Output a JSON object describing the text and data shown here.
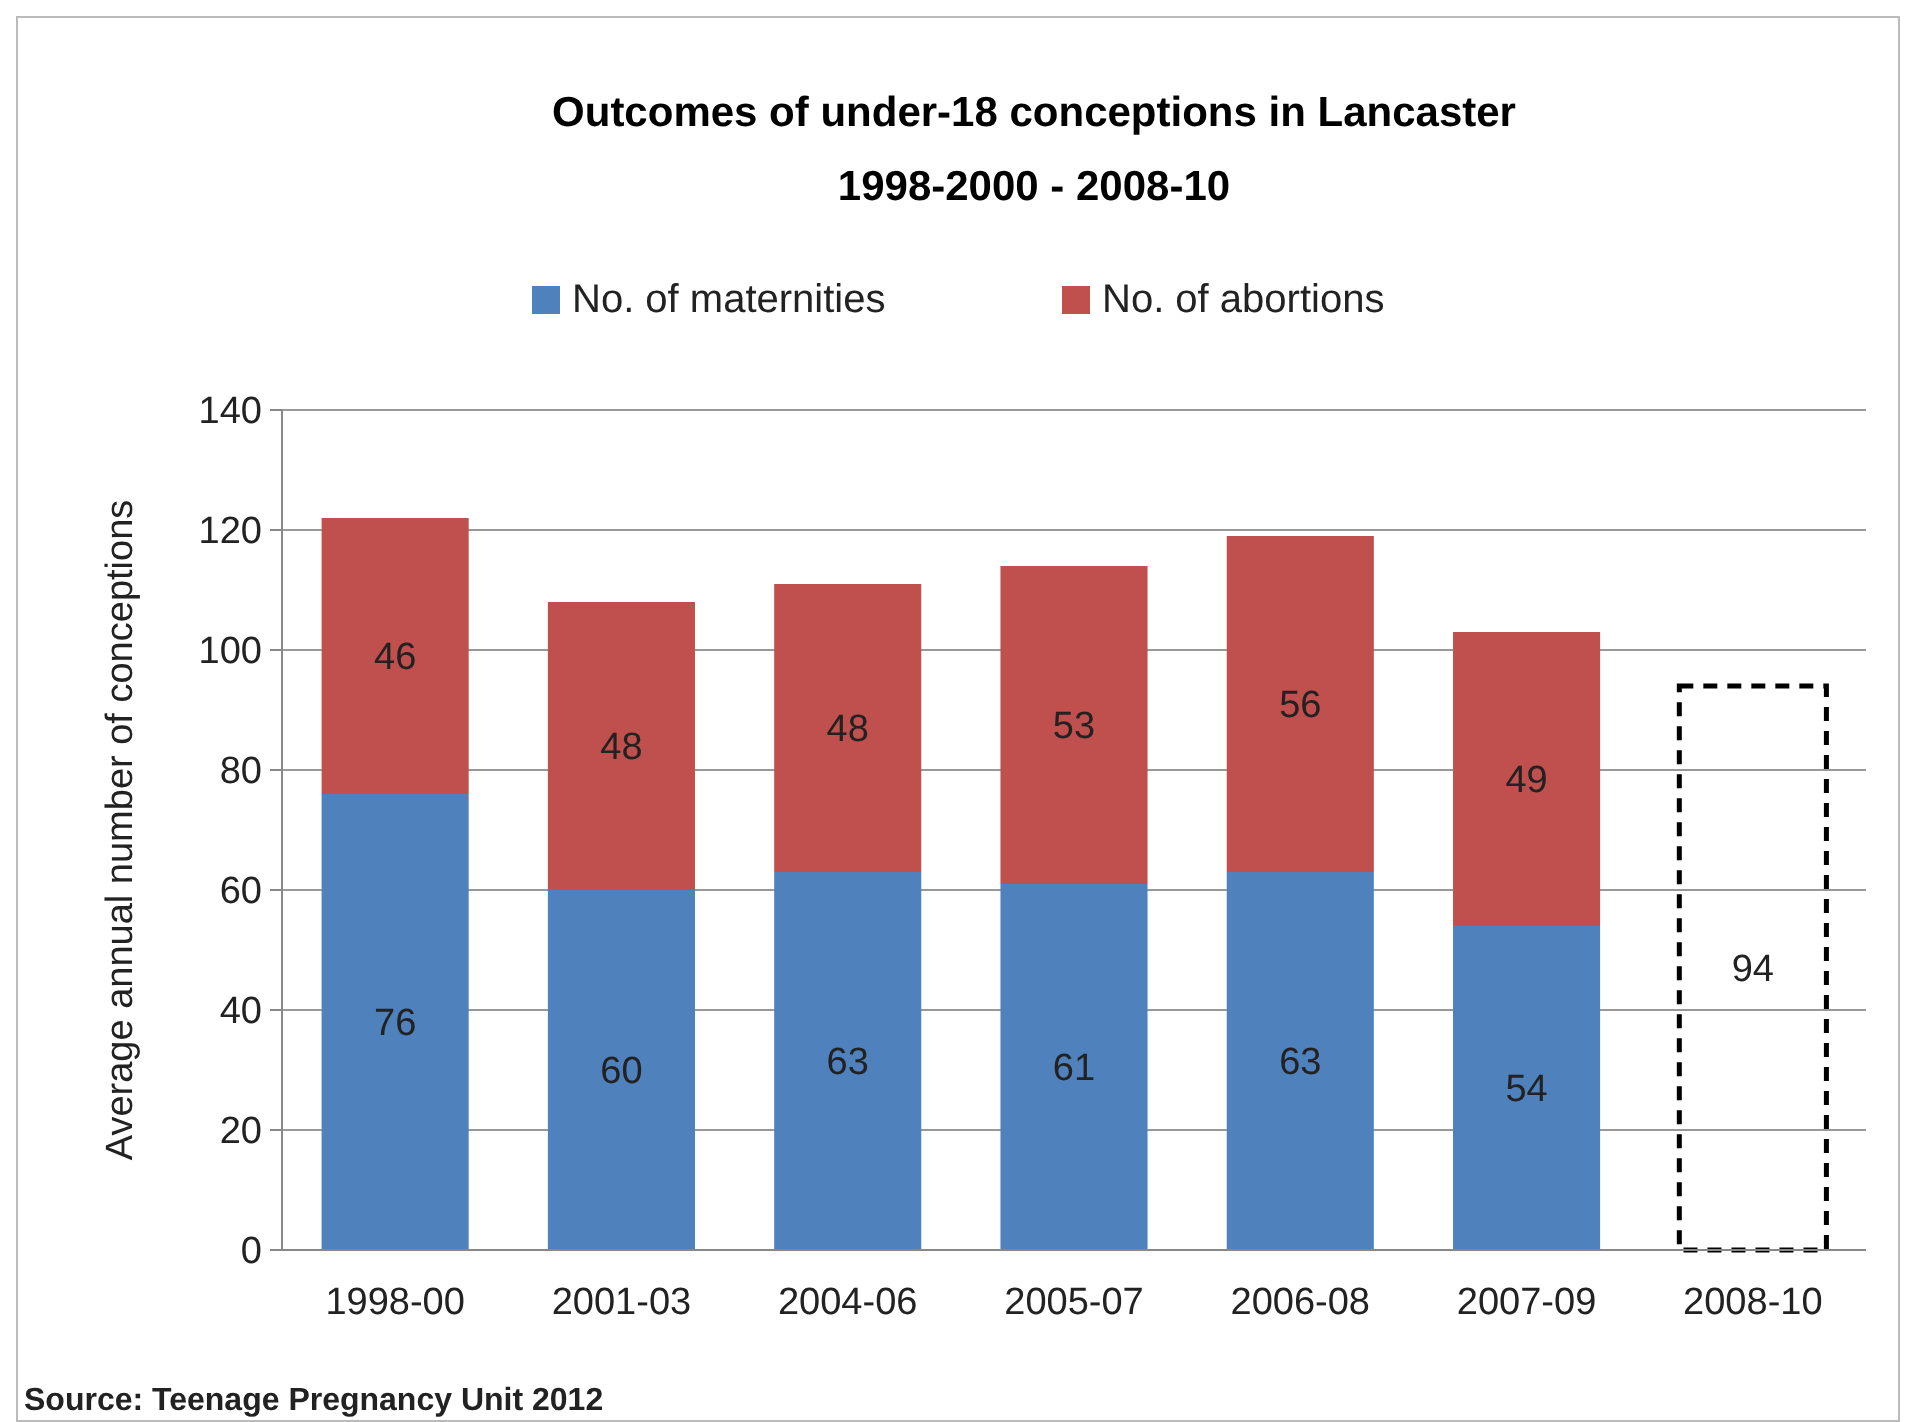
{
  "chart_data": {
    "type": "bar",
    "title": "Outcomes of under-18 conceptions in Lancaster\n1998-2000 - 2008-10",
    "ylabel": "Average annual number of conceptions",
    "categories": [
      "1998-00",
      "2001-03",
      "2004-06",
      "2005-07",
      "2006-08",
      "2007-09",
      "2008-10"
    ],
    "series": [
      {
        "name": "No. of maternities",
        "color": "#4f81bd",
        "values": [
          76,
          60,
          63,
          61,
          63,
          54,
          null
        ]
      },
      {
        "name": "No. of abortions",
        "color": "#c0504d",
        "values": [
          46,
          48,
          48,
          53,
          56,
          49,
          null
        ]
      },
      {
        "color": "#000000",
        "line_style": "dashed",
        "values": [
          null,
          null,
          null,
          null,
          null,
          null,
          94
        ]
      }
    ],
    "stacked": true,
    "data_labels": true,
    "ylim": [
      0,
      140
    ],
    "yticks": [
      0,
      20,
      40,
      60,
      80,
      100,
      120,
      140
    ],
    "grid": "y",
    "legend": "top",
    "annotations": [
      "Source: Teenage Pregnancy Unit 2012"
    ]
  }
}
